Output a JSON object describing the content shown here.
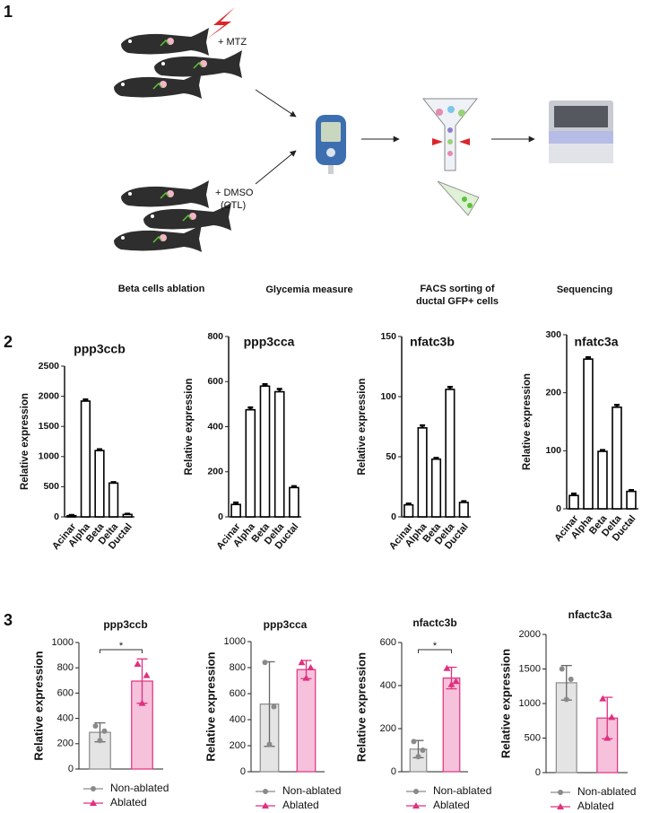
{
  "panel_labels": [
    "1",
    "2",
    "3"
  ],
  "diagram": {
    "treatments": [
      "+ MTZ",
      "+ DMSO",
      "(CTL)"
    ],
    "steps": [
      [
        "Beta cells ablation"
      ],
      [
        "Glycemia measure"
      ],
      [
        "FACS sorting of",
        "ductal GFP+ cells"
      ],
      [
        "Sequencing"
      ]
    ]
  },
  "chart_data": [
    {
      "type": "bar",
      "title": "ppp3ccb",
      "y_label": "Relative expression",
      "categories": [
        "Acinar",
        "Alpha",
        "Beta",
        "Delta",
        "Ductal"
      ],
      "values": [
        20,
        1920,
        1100,
        560,
        40
      ],
      "errors": [
        10,
        25,
        20,
        15,
        10
      ],
      "color": "#000000",
      "ylim": [
        0,
        2500
      ],
      "yticks": [
        0,
        500,
        1000,
        1500,
        2000,
        2500
      ]
    },
    {
      "type": "bar",
      "title": "ppp3cca",
      "y_label": "Relative expression",
      "categories": [
        "Acinar",
        "Alpha",
        "Beta",
        "Delta",
        "Ductal"
      ],
      "values": [
        55,
        475,
        580,
        555,
        130
      ],
      "errors": [
        8,
        10,
        8,
        12,
        6
      ],
      "color": "#000000",
      "ylim": [
        0,
        800
      ],
      "yticks": [
        0,
        200,
        400,
        600,
        800
      ]
    },
    {
      "type": "bar",
      "title": "nfatc3b",
      "y_label": "Relative expression",
      "categories": [
        "Acinar",
        "Alpha",
        "Beta",
        "Delta",
        "Ductal"
      ],
      "values": [
        10,
        74,
        48,
        106,
        12
      ],
      "errors": [
        1,
        2,
        1,
        2,
        1
      ],
      "color": "#000000",
      "ylim": [
        0,
        150
      ],
      "yticks": [
        0,
        50,
        100,
        150
      ]
    },
    {
      "type": "bar",
      "title": "nfatc3a",
      "y_label": "Relative expression",
      "categories": [
        "Acinar",
        "Alpha",
        "Beta",
        "Delta",
        "Ductal"
      ],
      "values": [
        23,
        258,
        99,
        175,
        30
      ],
      "errors": [
        3,
        3,
        2,
        4,
        2
      ],
      "color": "#000000",
      "ylim": [
        0,
        300
      ],
      "yticks": [
        0,
        100,
        200,
        300
      ]
    },
    {
      "type": "bar",
      "title": "ppp3ccb",
      "y_label": "Relative expression",
      "annotation": "*",
      "legend": "bottom",
      "ylim": [
        0,
        1000
      ],
      "yticks": [
        0,
        200,
        400,
        600,
        800,
        1000
      ],
      "series": [
        {
          "name": "Non-ablated",
          "color": "#8a8a8a",
          "fill": "#e4e4e4",
          "marker": "circle",
          "values": [
            290
          ],
          "errors": [
            75
          ],
          "points": [
            [
              340,
              300,
              225
            ]
          ]
        },
        {
          "name": "Ablated",
          "color": "#e0307f",
          "fill": "#f6c1da",
          "marker": "triangle",
          "values": [
            695
          ],
          "errors": [
            175
          ],
          "points": [
            [
              830,
              740,
              520
            ]
          ]
        }
      ]
    },
    {
      "type": "bar",
      "title": "ppp3cca",
      "y_label": "Relative expression",
      "legend": "bottom",
      "ylim": [
        0,
        1000
      ],
      "yticks": [
        0,
        200,
        400,
        600,
        800,
        1000
      ],
      "series": [
        {
          "name": "Non-ablated",
          "color": "#8a8a8a",
          "fill": "#e4e4e4",
          "marker": "circle",
          "values": [
            520
          ],
          "errors": [
            325
          ],
          "points": [
            [
              840,
              500,
              210
            ]
          ]
        },
        {
          "name": "Ablated",
          "color": "#e0307f",
          "fill": "#f6c1da",
          "marker": "triangle",
          "values": [
            785
          ],
          "errors": [
            70
          ],
          "points": [
            [
              840,
              800,
              720
            ]
          ]
        }
      ]
    },
    {
      "type": "bar",
      "title": "nfactc3b",
      "y_label": "Relative expression",
      "annotation": "*",
      "legend": "bottom",
      "ylim": [
        0,
        600
      ],
      "yticks": [
        0,
        200,
        400,
        600
      ],
      "series": [
        {
          "name": "Non-ablated",
          "color": "#8a8a8a",
          "fill": "#e4e4e4",
          "marker": "circle",
          "values": [
            105
          ],
          "errors": [
            40
          ],
          "points": [
            [
              140,
              100,
              70
            ]
          ]
        },
        {
          "name": "Ablated",
          "color": "#e0307f",
          "fill": "#f6c1da",
          "marker": "triangle",
          "values": [
            435
          ],
          "errors": [
            50
          ],
          "points": [
            [
              480,
              420,
              405
            ]
          ]
        }
      ]
    },
    {
      "type": "bar",
      "title": "nfactc3a",
      "y_label": "Relative expression",
      "legend": "bottom",
      "ylim": [
        0,
        2000
      ],
      "yticks": [
        0,
        500,
        1000,
        1500,
        2000
      ],
      "series": [
        {
          "name": "Non-ablated",
          "color": "#8a8a8a",
          "fill": "#e4e4e4",
          "marker": "circle",
          "values": [
            1300
          ],
          "errors": [
            250
          ],
          "points": [
            [
              1500,
              1350,
              1060
            ]
          ]
        },
        {
          "name": "Ablated",
          "color": "#e0307f",
          "fill": "#f6c1da",
          "marker": "triangle",
          "values": [
            790
          ],
          "errors": [
            300
          ],
          "points": [
            [
              1070,
              800,
              500
            ]
          ]
        }
      ]
    }
  ]
}
